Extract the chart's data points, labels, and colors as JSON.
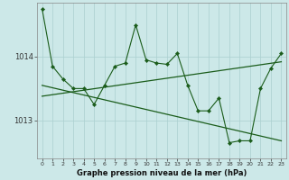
{
  "title": "Graphe pression niveau de la mer (hPa)",
  "bg_color": "#cce8e8",
  "line_color": "#1a5c1a",
  "grid_color": "#aacfcf",
  "y_ticks": [
    1013,
    1014
  ],
  "ylim": [
    1012.4,
    1014.85
  ],
  "xlim": [
    -0.5,
    23.5
  ],
  "series1": [
    1014.75,
    1013.85,
    1013.65,
    1013.5,
    1013.5,
    1013.25,
    1013.55,
    1013.85,
    1013.9,
    1014.5,
    1013.95,
    1013.9,
    1013.88,
    1014.05,
    1013.55,
    1013.15,
    1013.15,
    1013.35,
    1012.65,
    1012.68,
    1012.68,
    1013.5,
    1013.82,
    1014.05
  ],
  "trend1_x": [
    0,
    23
  ],
  "trend1_y": [
    1013.55,
    1012.68
  ],
  "trend2_x": [
    0,
    23
  ],
  "trend2_y": [
    1013.38,
    1013.92
  ]
}
